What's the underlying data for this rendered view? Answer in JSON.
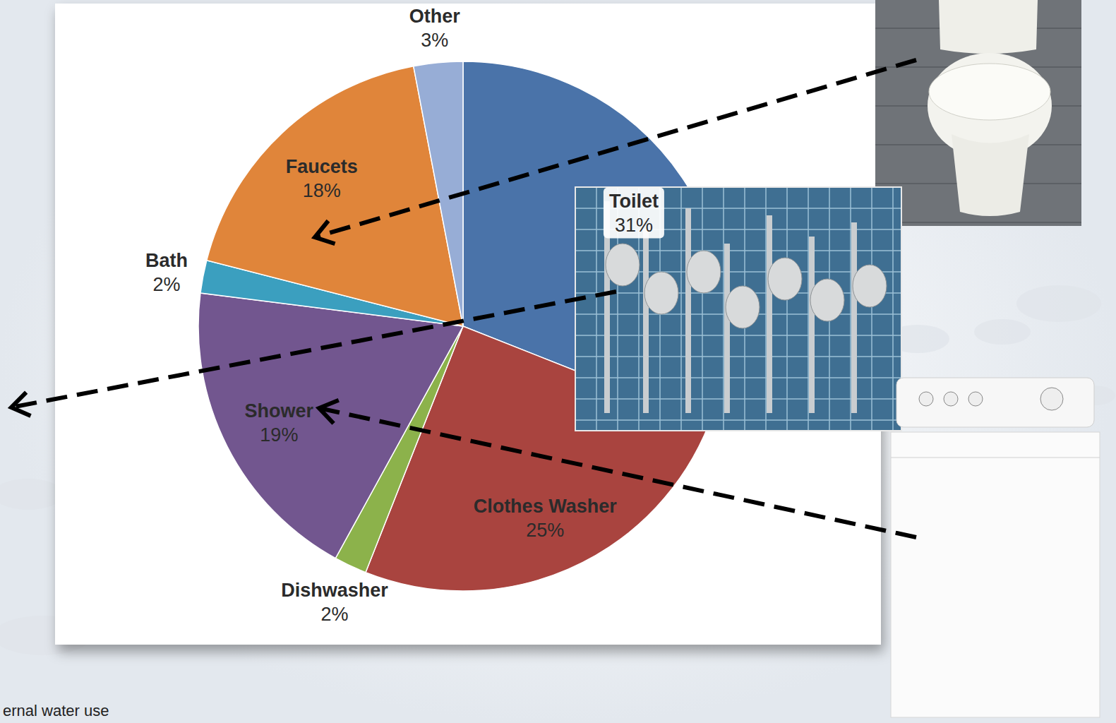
{
  "chart_data": {
    "type": "pie",
    "categories": [
      "Toilet",
      "Clothes Washer",
      "Dishwasher",
      "Shower",
      "Bath",
      "Faucets",
      "Other"
    ],
    "values": [
      31,
      25,
      2,
      19,
      2,
      18,
      3
    ],
    "value_labels": [
      "31%",
      "25%",
      "2%",
      "19%",
      "2%",
      "18%",
      "3%"
    ],
    "colors": [
      "#4a73a9",
      "#a9443f",
      "#8cb24b",
      "#72568f",
      "#3b9fbf",
      "#e0853a",
      "#97add6"
    ],
    "data_labels": true,
    "annotations": [
      "ernal water use"
    ]
  }
}
